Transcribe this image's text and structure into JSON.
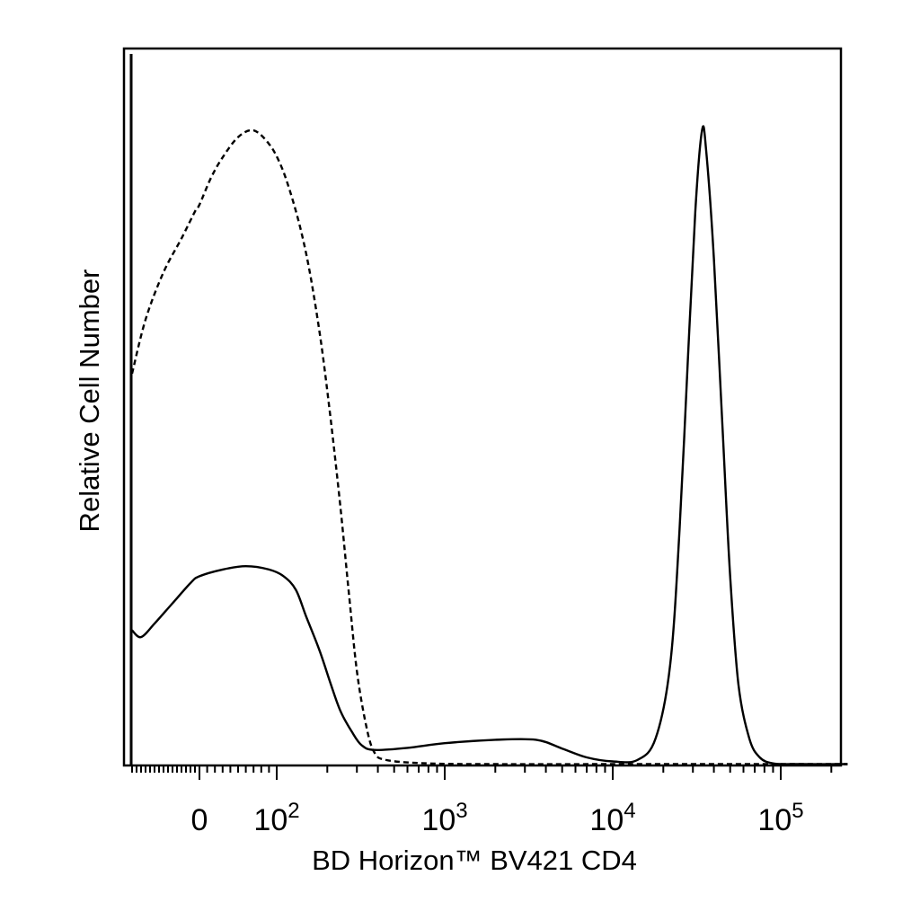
{
  "chart_data": {
    "type": "line",
    "title": "",
    "xlabel": "BD Horizon™ BV421 CD4",
    "ylabel": "Relative Cell Number",
    "x_scale": "biexponential",
    "x_tick_labels": [
      {
        "value": 0,
        "base": "0",
        "exp": ""
      },
      {
        "value": 100,
        "base": "10",
        "exp": "2"
      },
      {
        "value": 1000,
        "base": "10",
        "exp": "3"
      },
      {
        "value": 10000,
        "base": "10",
        "exp": "4"
      },
      {
        "value": 100000,
        "base": "10",
        "exp": "5"
      }
    ],
    "xlim": [
      -150,
      250000
    ],
    "ylim": [
      0,
      100
    ],
    "grid": false,
    "legend": "none",
    "colors": {
      "line": "#000000",
      "frame": "#000000"
    },
    "series": [
      {
        "style": "dashed",
        "points": [
          [
            -150,
            58
          ],
          [
            -120,
            66
          ],
          [
            -80,
            73
          ],
          [
            -40,
            78
          ],
          [
            -10,
            82
          ],
          [
            0,
            83
          ],
          [
            15,
            87
          ],
          [
            30,
            90
          ],
          [
            50,
            93
          ],
          [
            70,
            94
          ],
          [
            90,
            92
          ],
          [
            105,
            89
          ],
          [
            120,
            85
          ],
          [
            140,
            79
          ],
          [
            160,
            72
          ],
          [
            185,
            62
          ],
          [
            210,
            51
          ],
          [
            240,
            38
          ],
          [
            270,
            25
          ],
          [
            300,
            14
          ],
          [
            340,
            6
          ],
          [
            380,
            2
          ],
          [
            450,
            0.8
          ],
          [
            800,
            0.3
          ],
          [
            2000,
            0.2
          ],
          [
            10000,
            0.2
          ],
          [
            50000,
            0.2
          ],
          [
            100000,
            0.2
          ],
          [
            250000,
            0.2
          ]
        ]
      },
      {
        "style": "solid",
        "points": [
          [
            -150,
            20
          ],
          [
            -130,
            19
          ],
          [
            -100,
            21
          ],
          [
            -60,
            24
          ],
          [
            -20,
            27
          ],
          [
            0,
            28
          ],
          [
            30,
            29
          ],
          [
            60,
            29.5
          ],
          [
            90,
            29
          ],
          [
            110,
            28
          ],
          [
            130,
            26
          ],
          [
            150,
            22
          ],
          [
            180,
            17
          ],
          [
            210,
            12
          ],
          [
            240,
            8
          ],
          [
            280,
            5
          ],
          [
            320,
            3
          ],
          [
            380,
            2.3
          ],
          [
            600,
            2.6
          ],
          [
            1000,
            3.3
          ],
          [
            2000,
            3.8
          ],
          [
            3500,
            3.8
          ],
          [
            5000,
            2.5
          ],
          [
            7000,
            1.2
          ],
          [
            10000,
            0.6
          ],
          [
            14000,
            0.8
          ],
          [
            18000,
            4
          ],
          [
            22000,
            15
          ],
          [
            25000,
            35
          ],
          [
            28000,
            60
          ],
          [
            31000,
            82
          ],
          [
            34000,
            94
          ],
          [
            36000,
            91
          ],
          [
            40000,
            75
          ],
          [
            45000,
            50
          ],
          [
            50000,
            28
          ],
          [
            56000,
            12
          ],
          [
            65000,
            4
          ],
          [
            75000,
            1.2
          ],
          [
            90000,
            0.3
          ],
          [
            120000,
            0.2
          ],
          [
            250000,
            0.2
          ]
        ]
      }
    ]
  }
}
